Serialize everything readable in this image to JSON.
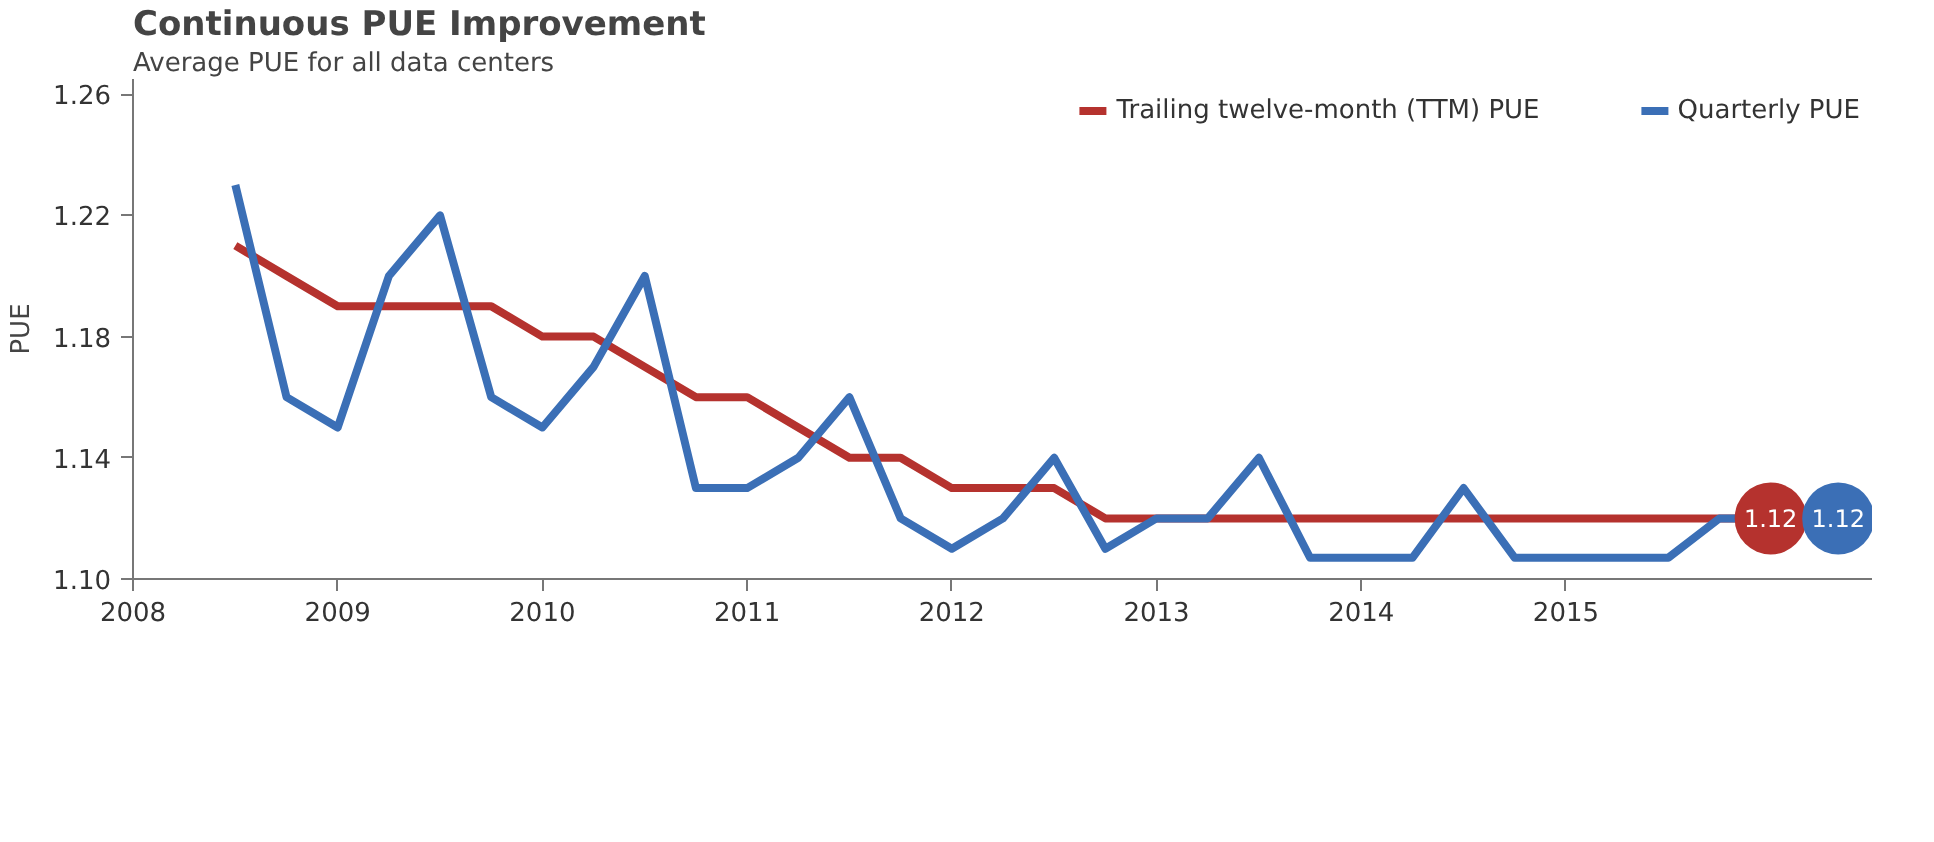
{
  "chart_data": {
    "type": "line",
    "title": "Continuous PUE Improvement",
    "subtitle": "Average PUE for all data centers",
    "ylabel": "PUE",
    "xlim": [
      2008,
      2016.5
    ],
    "xticks": [
      2008,
      2009,
      2010,
      2011,
      2012,
      2013,
      2014,
      2015
    ],
    "ylim": [
      1.1,
      1.265
    ],
    "yticks": [
      {
        "value": 1.1,
        "label": "1.10"
      },
      1.14,
      1.18,
      1.22,
      1.26
    ],
    "grid": false,
    "legend": "top right",
    "marker": "none",
    "line_style": "solid",
    "series": [
      {
        "name": "Trailing twelve-month (TTM) PUE",
        "color": "#b5322e",
        "x": [
          2008.5,
          2008.75,
          2009,
          2009.25,
          2009.5,
          2009.75,
          2010,
          2010.25,
          2010.5,
          2010.75,
          2011,
          2011.25,
          2011.5,
          2011.75,
          2012,
          2012.25,
          2012.5,
          2012.75,
          2013,
          2013.25,
          2013.5,
          2013.75,
          2014,
          2014.25,
          2014.5,
          2014.75,
          2015,
          2015.25,
          2015.5,
          2015.75,
          2016
        ],
        "values": [
          1.21,
          1.2,
          1.19,
          1.19,
          1.19,
          1.19,
          1.18,
          1.18,
          1.17,
          1.16,
          1.16,
          1.15,
          1.14,
          1.14,
          1.13,
          1.13,
          1.13,
          1.12,
          1.12,
          1.12,
          1.12,
          1.12,
          1.12,
          1.12,
          1.12,
          1.12,
          1.12,
          1.12,
          1.12,
          1.12,
          1.12
        ],
        "value_labels": [
          null,
          null,
          null,
          null,
          null,
          null,
          null,
          null,
          null,
          null,
          null,
          null,
          null,
          null,
          null,
          null,
          null,
          null,
          null,
          null,
          null,
          null,
          null,
          null,
          null,
          null,
          null,
          null,
          null,
          null,
          "1.12"
        ]
      },
      {
        "name": "Quarterly PUE",
        "color": "#3b6fb6",
        "x": [
          2008.5,
          2008.75,
          2009,
          2009.25,
          2009.5,
          2009.75,
          2010,
          2010.25,
          2010.5,
          2010.75,
          2011,
          2011.25,
          2011.5,
          2011.75,
          2012,
          2012.25,
          2012.5,
          2012.75,
          2013,
          2013.25,
          2013.5,
          2013.75,
          2014,
          2014.25,
          2014.5,
          2014.75,
          2015,
          2015.25,
          2015.5,
          2015.75,
          2016,
          2016.33
        ],
        "values": [
          1.23,
          1.16,
          1.15,
          1.2,
          1.22,
          1.16,
          1.15,
          1.17,
          1.2,
          1.13,
          1.13,
          1.14,
          1.16,
          1.12,
          1.11,
          1.12,
          1.14,
          1.11,
          1.12,
          1.12,
          1.14,
          1.107,
          1.107,
          1.107,
          1.13,
          1.107,
          1.107,
          1.107,
          1.107,
          1.12,
          1.12,
          1.12
        ],
        "value_labels": [
          null,
          null,
          null,
          null,
          null,
          null,
          null,
          null,
          null,
          null,
          null,
          null,
          null,
          null,
          null,
          null,
          null,
          null,
          null,
          null,
          null,
          null,
          null,
          null,
          null,
          null,
          null,
          null,
          null,
          null,
          null,
          "1.12"
        ]
      }
    ]
  }
}
